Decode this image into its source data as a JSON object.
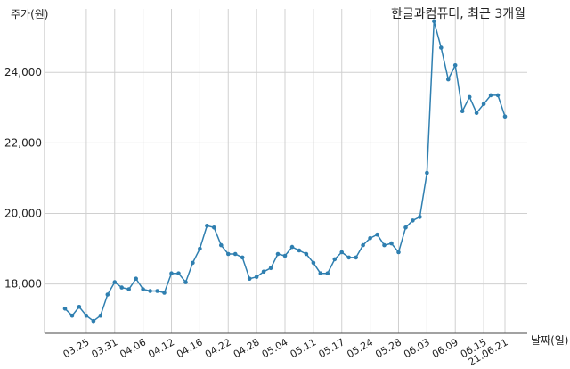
{
  "chart_data": {
    "type": "line",
    "title": "한글과컴퓨터, 최근 3개월",
    "ylabel": "주가(원)",
    "xlabel": "날짜(일)",
    "ylim": [
      16600,
      25800
    ],
    "grid": true,
    "yticks": [
      {
        "value": 18000,
        "label": "18,000"
      },
      {
        "value": 20000,
        "label": "20,000"
      },
      {
        "value": 22000,
        "label": "22,000"
      },
      {
        "value": 24000,
        "label": "24,000"
      }
    ],
    "xticks": [
      {
        "index": 3,
        "label": "03.25"
      },
      {
        "index": 7,
        "label": "03.31"
      },
      {
        "index": 11,
        "label": "04.06"
      },
      {
        "index": 15,
        "label": "04.12"
      },
      {
        "index": 19,
        "label": "04.16"
      },
      {
        "index": 23,
        "label": "04.22"
      },
      {
        "index": 27,
        "label": "04.28"
      },
      {
        "index": 31,
        "label": "05.04"
      },
      {
        "index": 35,
        "label": "05.11"
      },
      {
        "index": 39,
        "label": "05.17"
      },
      {
        "index": 43,
        "label": "05.24"
      },
      {
        "index": 47,
        "label": "05.28"
      },
      {
        "index": 51,
        "label": "06.03"
      },
      {
        "index": 55,
        "label": "06.09"
      },
      {
        "index": 59,
        "label": "06.15"
      },
      {
        "index": 62,
        "label": "21.06.21"
      }
    ],
    "series": [
      {
        "color": "#2f7fb0",
        "values": [
          17300,
          17100,
          17350,
          17100,
          16950,
          17100,
          17700,
          18050,
          17900,
          17850,
          18150,
          17850,
          17800,
          17800,
          17750,
          18300,
          18300,
          18050,
          18600,
          19000,
          19650,
          19600,
          19100,
          18850,
          18850,
          18750,
          18150,
          18200,
          18350,
          18450,
          18850,
          18800,
          19050,
          18950,
          18850,
          18600,
          18300,
          18300,
          18700,
          18900,
          18750,
          18750,
          19100,
          19300,
          19400,
          19100,
          19150,
          18900,
          19600,
          19800,
          19900,
          21150,
          25450,
          24700,
          23800,
          24200,
          22900,
          23300,
          22850,
          23100,
          23350,
          23350,
          22750
        ]
      }
    ]
  }
}
